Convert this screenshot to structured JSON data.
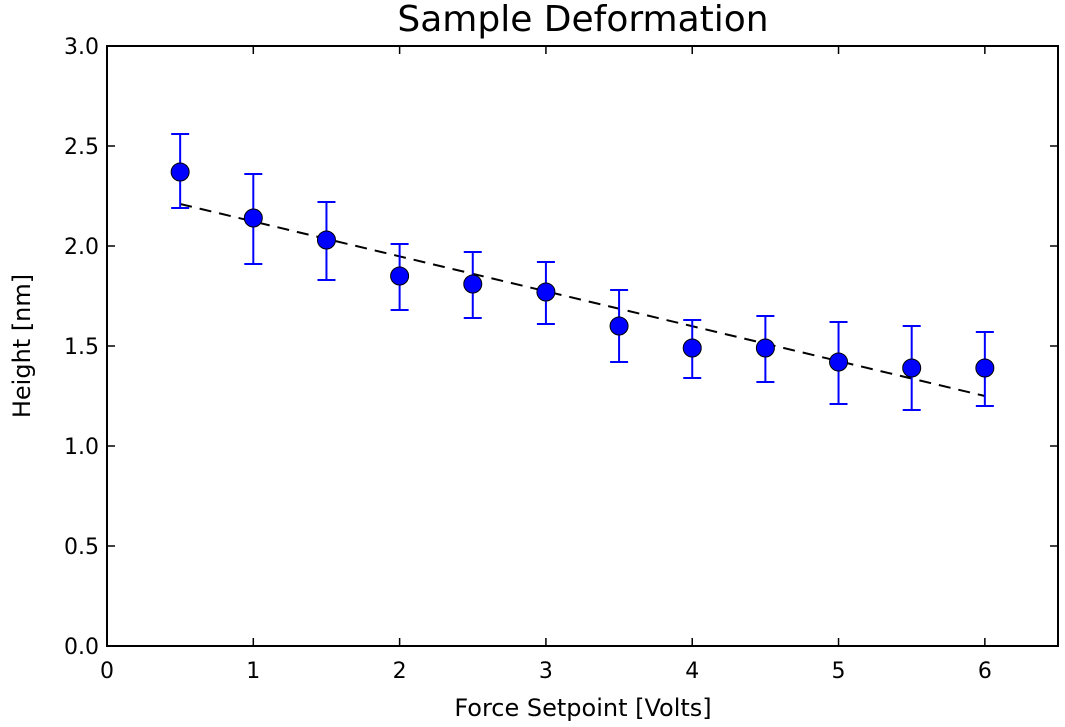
{
  "chart_data": {
    "type": "scatter",
    "title": "Sample Deformation",
    "xlabel": "Force Setpoint [Volts]",
    "ylabel": "Height [nm]",
    "xlim": [
      0,
      6.5
    ],
    "ylim": [
      0.0,
      3.0
    ],
    "xticks": [
      0,
      1,
      2,
      3,
      4,
      5,
      6
    ],
    "xtick_labels": [
      "0",
      "1",
      "2",
      "3",
      "4",
      "5",
      "6"
    ],
    "yticks": [
      0.0,
      0.5,
      1.0,
      1.5,
      2.0,
      2.5,
      3.0
    ],
    "ytick_labels": [
      "0.0",
      "0.5",
      "1.0",
      "1.5",
      "2.0",
      "2.5",
      "3.0"
    ],
    "grid": false,
    "series": [
      {
        "kind": "errorbar",
        "color": "#0000ff",
        "points": [
          {
            "x": 0.5,
            "y": 2.37,
            "yerr_low": 2.19,
            "yerr_high": 2.56
          },
          {
            "x": 1.0,
            "y": 2.14,
            "yerr_low": 1.91,
            "yerr_high": 2.36
          },
          {
            "x": 1.5,
            "y": 2.03,
            "yerr_low": 1.83,
            "yerr_high": 2.22
          },
          {
            "x": 2.0,
            "y": 1.85,
            "yerr_low": 1.68,
            "yerr_high": 2.01
          },
          {
            "x": 2.5,
            "y": 1.81,
            "yerr_low": 1.64,
            "yerr_high": 1.97
          },
          {
            "x": 3.0,
            "y": 1.77,
            "yerr_low": 1.61,
            "yerr_high": 1.92
          },
          {
            "x": 3.5,
            "y": 1.6,
            "yerr_low": 1.42,
            "yerr_high": 1.78
          },
          {
            "x": 4.0,
            "y": 1.49,
            "yerr_low": 1.34,
            "yerr_high": 1.63
          },
          {
            "x": 4.5,
            "y": 1.49,
            "yerr_low": 1.32,
            "yerr_high": 1.65
          },
          {
            "x": 5.0,
            "y": 1.42,
            "yerr_low": 1.21,
            "yerr_high": 1.62
          },
          {
            "x": 5.5,
            "y": 1.39,
            "yerr_low": 1.18,
            "yerr_high": 1.6
          },
          {
            "x": 6.0,
            "y": 1.39,
            "yerr_low": 1.2,
            "yerr_high": 1.57
          }
        ]
      },
      {
        "kind": "fit-line",
        "color": "#000000",
        "style": "dashed",
        "x": [
          0.5,
          6.0
        ],
        "y": [
          2.21,
          1.25
        ]
      }
    ]
  }
}
